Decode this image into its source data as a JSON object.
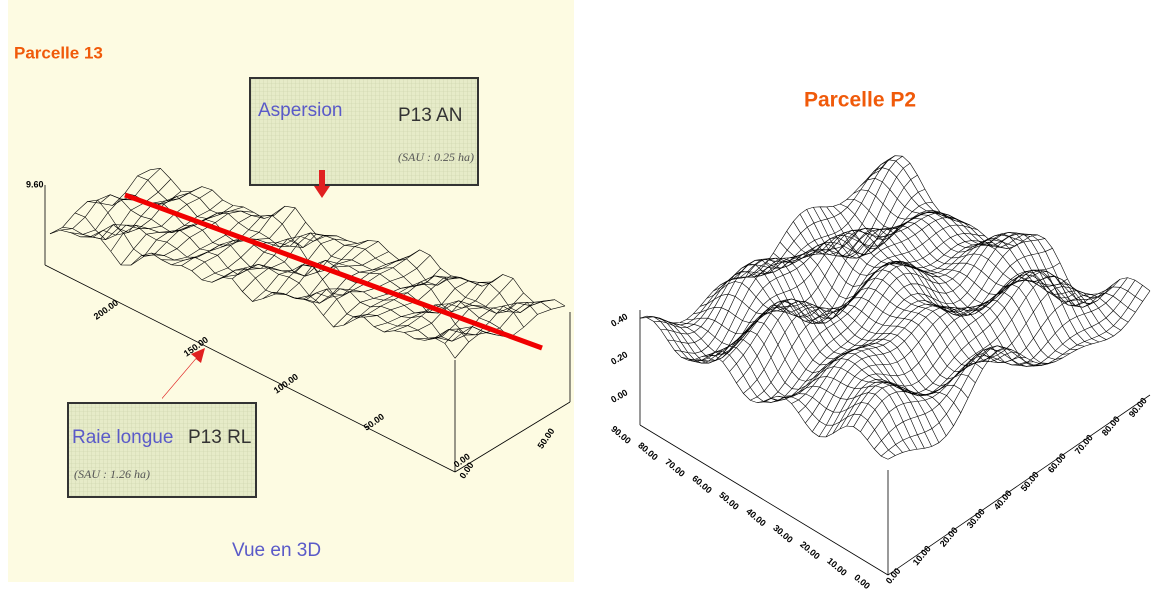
{
  "left": {
    "title": "Parcelle 13",
    "box_top": {
      "label": "Aspersion",
      "code": "P13 AN",
      "note": "(SAU : 0.25 ha)"
    },
    "box_bottom": {
      "label": "Raie longue",
      "code": "P13 RL",
      "note": "(SAU : 1.26 ha)"
    },
    "caption": "Vue en 3D",
    "z_label": "9.60",
    "x_labels": [
      "200.00",
      "150.00",
      "100.00",
      "50.00",
      "0.00"
    ],
    "y_labels": [
      "0.00",
      "50.00"
    ]
  },
  "right": {
    "title": "Parcelle P2",
    "z_labels": [
      "0.40",
      "0.20",
      "0.00"
    ],
    "x_labels": [
      "90.00",
      "80.00",
      "70.00",
      "60.00",
      "50.00",
      "40.00",
      "30.00",
      "20.00",
      "10.00",
      "0.00"
    ],
    "y_labels": [
      "0.00",
      "10.00",
      "20.00",
      "30.00",
      "40.00",
      "50.00",
      "60.00",
      "70.00",
      "80.00",
      "90.00"
    ]
  }
}
